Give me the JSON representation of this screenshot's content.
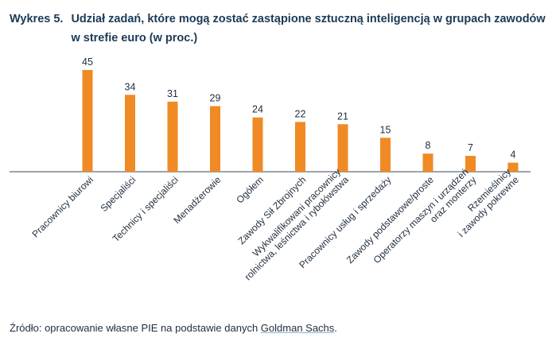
{
  "header": {
    "label": "Wykres 5.",
    "title": "Udział zadań, które mogą zostać zastąpione sztuczną inteligencją w grupach zawodów w strefie euro (w proc.)"
  },
  "chart_data": {
    "type": "bar",
    "title": "Udział zadań, które mogą zostać zastąpione sztuczną inteligencją w grupach zawodów w strefie euro (w proc.)",
    "xlabel": "",
    "ylabel": "",
    "ylim": [
      0,
      50
    ],
    "categories": [
      "Pracownicy biurowi",
      "Specjaliści",
      "Technicy i specjaliści",
      "Menadżerowie",
      "Ogółem",
      "Zawody Sił Zbrojnych",
      "Wykwalifikowani pracownicy|rolnictwa, leśnictwa i rybołówstwa",
      "Pracownicy usług i sprzedaży",
      "Zawody podstawowe/proste",
      "Operatorzy maszyn i urządzeń|oraz monterzy",
      "Rzemieślnicy|i zawody pokrewne"
    ],
    "values": [
      45,
      34,
      31,
      29,
      24,
      22,
      21,
      15,
      8,
      7,
      4
    ],
    "value_labels": [
      "45",
      "34",
      "31",
      "29",
      "24",
      "22",
      "21",
      "15",
      "8",
      "7",
      "4"
    ],
    "bar_color": "#f08a24",
    "grid": false,
    "legend": "none"
  },
  "source": {
    "prefix": "Źródło: opracowanie własne PIE na podstawie danych ",
    "link": "Goldman Sachs",
    "suffix": "."
  }
}
